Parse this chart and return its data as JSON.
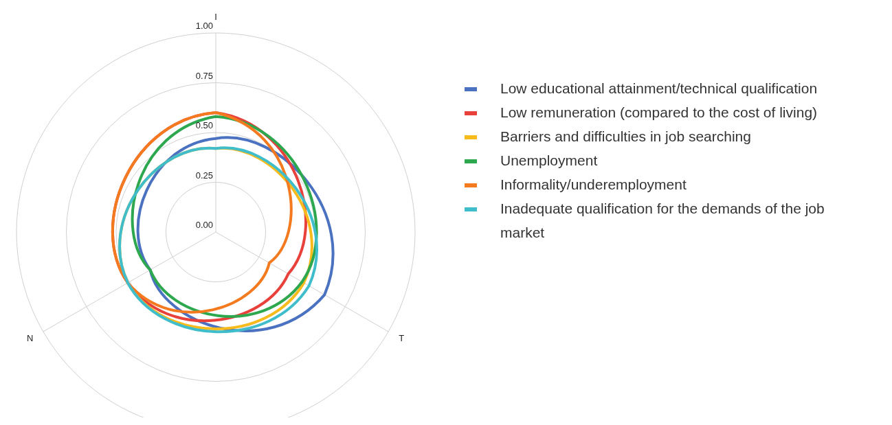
{
  "chart_data": {
    "type": "radar",
    "categories": [
      "I",
      "T",
      "N"
    ],
    "ylim": [
      0,
      1
    ],
    "yticks": [
      {
        "value": 0,
        "label": "0.00"
      },
      {
        "value": 0.25,
        "label": "0.25"
      },
      {
        "value": 0.5,
        "label": "0.50"
      },
      {
        "value": 0.75,
        "label": "0.75"
      },
      {
        "value": 1,
        "label": "1.00"
      }
    ],
    "grid": true,
    "legend": "right",
    "series": [
      {
        "name": "Low educational attainment/technical qualification",
        "color": "#4a72c0",
        "values": [
          0.47,
          0.63,
          0.38
        ]
      },
      {
        "name": "Low remuneration (compared to the cost of living)",
        "color": "#e8403a",
        "values": [
          0.6,
          0.42,
          0.51
        ]
      },
      {
        "name": "Barriers and difficulties in job searching",
        "color": "#f7bb1c",
        "values": [
          0.42,
          0.51,
          0.51
        ]
      },
      {
        "name": "Unemployment",
        "color": "#2ea84f",
        "values": [
          0.58,
          0.5,
          0.38
        ]
      },
      {
        "name": "Informality/underemployment",
        "color": "#f47a20",
        "values": [
          0.6,
          0.31,
          0.51
        ]
      },
      {
        "name": "Inadequate qualification for the demands of the job market",
        "color": "#3fbdca",
        "values": [
          0.42,
          0.54,
          0.51
        ]
      }
    ]
  }
}
